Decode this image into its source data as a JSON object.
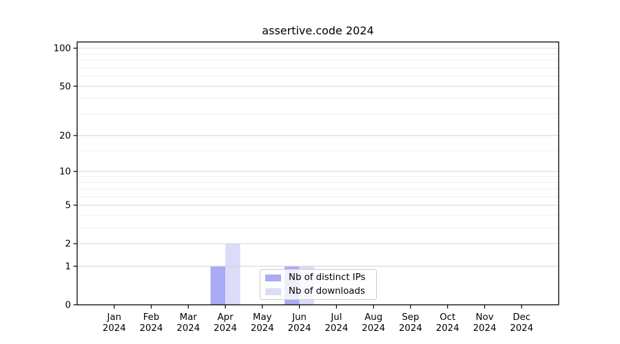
{
  "chart_data": {
    "type": "bar",
    "title": "assertive.code 2024",
    "categories": [
      "Jan 2024",
      "Feb 2024",
      "Mar 2024",
      "Apr 2024",
      "May 2024",
      "Jun 2024",
      "Jul 2024",
      "Aug 2024",
      "Sep 2024",
      "Oct 2024",
      "Nov 2024",
      "Dec 2024"
    ],
    "series": [
      {
        "name": "Nb of distinct IPs",
        "color": "#aaaaf5",
        "values": [
          0,
          0,
          0,
          1,
          0,
          1,
          0,
          0,
          0,
          0,
          0,
          0
        ]
      },
      {
        "name": "Nb of downloads",
        "color": "#dcdcf8",
        "values": [
          0,
          0,
          0,
          2,
          0,
          1,
          0,
          0,
          0,
          0,
          0,
          0
        ]
      }
    ],
    "xlabel": "",
    "ylabel": "",
    "y_scale": "log1p",
    "ylim": [
      0,
      112
    ],
    "y_ticks": [
      0,
      1,
      2,
      5,
      10,
      20,
      50,
      100
    ],
    "y_minor_gridlines": [
      3,
      4,
      6,
      7,
      8,
      9,
      15,
      30,
      40,
      60,
      70,
      80,
      90
    ],
    "grid": true,
    "legend_position": "inside-bottom-center",
    "colors": {
      "bar_distinct_ips": "#aaaaf5",
      "bar_downloads": "#dcdcf8",
      "grid_major": "#d2d2d2",
      "grid_minor": "#ebebeb",
      "axis": "#000000",
      "text": "#000000",
      "legend_border": "#cccccc"
    }
  }
}
